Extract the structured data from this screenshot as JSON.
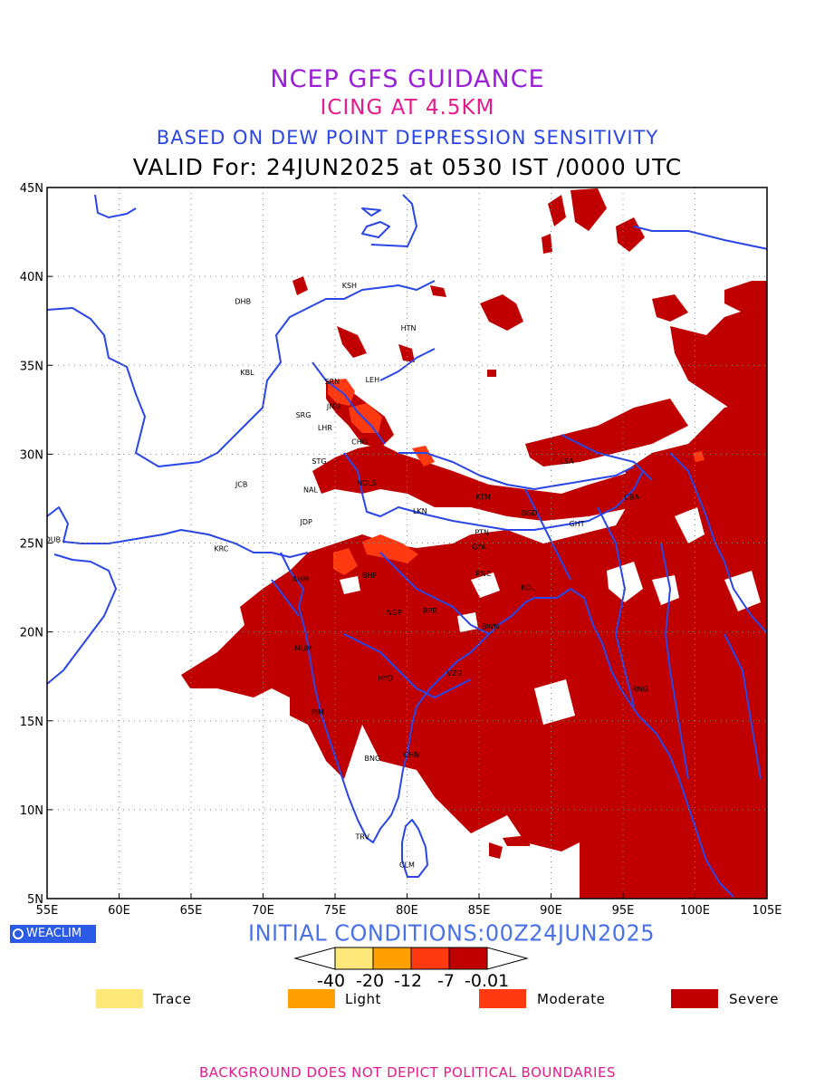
{
  "titles": {
    "line1": "NCEP GFS GUIDANCE",
    "line2": "ICING AT 4.5KM",
    "line3": "BASED ON DEW POINT DEPRESSION SENSITIVITY",
    "line4": "VALID For: 24JUN2025 at 0530 IST /0000 UTC"
  },
  "map": {
    "lon_range": [
      55,
      105
    ],
    "lat_range": [
      5,
      45
    ],
    "x_ticks": [
      "55E",
      "60E",
      "65E",
      "70E",
      "75E",
      "80E",
      "85E",
      "90E",
      "95E",
      "100E",
      "105E"
    ],
    "y_ticks": [
      "45N",
      "40N",
      "35N",
      "30N",
      "25N",
      "20N",
      "15N",
      "10N",
      "5N"
    ],
    "grid": "dotted",
    "coastline_color": "#2a46e6",
    "severe_color": "#c00000",
    "moderate_color": "#ff3a10",
    "cities": [
      {
        "code": "KSH",
        "lon": 76.0,
        "lat": 39.5
      },
      {
        "code": "DHB",
        "lon": 68.6,
        "lat": 38.6
      },
      {
        "code": "HTN",
        "lon": 80.1,
        "lat": 37.1
      },
      {
        "code": "KBL",
        "lon": 68.9,
        "lat": 34.6
      },
      {
        "code": "SRN",
        "lon": 74.8,
        "lat": 34.1
      },
      {
        "code": "LEH",
        "lon": 77.6,
        "lat": 34.2
      },
      {
        "code": "JMU",
        "lon": 74.9,
        "lat": 32.7
      },
      {
        "code": "SRG",
        "lon": 72.8,
        "lat": 32.2
      },
      {
        "code": "LHR",
        "lon": 74.3,
        "lat": 31.5
      },
      {
        "code": "CHG",
        "lon": 76.7,
        "lat": 30.7
      },
      {
        "code": "STG",
        "lon": 73.9,
        "lat": 29.6
      },
      {
        "code": "JCB",
        "lon": 68.5,
        "lat": 28.3
      },
      {
        "code": "NAL",
        "lon": 73.3,
        "lat": 28.0
      },
      {
        "code": "NDLS",
        "lon": 77.2,
        "lat": 28.4
      },
      {
        "code": "KTM",
        "lon": 85.3,
        "lat": 27.6
      },
      {
        "code": "LSA",
        "lon": 91.1,
        "lat": 29.6
      },
      {
        "code": "CBA",
        "lon": 95.6,
        "lat": 27.6
      },
      {
        "code": "JDP",
        "lon": 73.0,
        "lat": 26.2
      },
      {
        "code": "LKN",
        "lon": 80.9,
        "lat": 26.8
      },
      {
        "code": "BGD",
        "lon": 88.5,
        "lat": 26.7
      },
      {
        "code": "GHT",
        "lon": 91.8,
        "lat": 26.1
      },
      {
        "code": "DUB",
        "lon": 55.4,
        "lat": 25.2
      },
      {
        "code": "PTN",
        "lon": 85.2,
        "lat": 25.6
      },
      {
        "code": "KRC",
        "lon": 67.1,
        "lat": 24.7
      },
      {
        "code": "BHP",
        "lon": 77.4,
        "lat": 23.2
      },
      {
        "code": "RNC",
        "lon": 85.3,
        "lat": 23.3
      },
      {
        "code": "AHM",
        "lon": 72.6,
        "lat": 23.0
      },
      {
        "code": "GYA",
        "lon": 85.0,
        "lat": 24.8
      },
      {
        "code": "KOL",
        "lon": 88.4,
        "lat": 22.5
      },
      {
        "code": "NGP",
        "lon": 79.1,
        "lat": 21.1
      },
      {
        "code": "RPR",
        "lon": 81.6,
        "lat": 21.2
      },
      {
        "code": "BWN",
        "lon": 85.8,
        "lat": 20.3
      },
      {
        "code": "MUM",
        "lon": 72.8,
        "lat": 19.1
      },
      {
        "code": "HYD",
        "lon": 78.5,
        "lat": 17.4
      },
      {
        "code": "VZG",
        "lon": 83.3,
        "lat": 17.7
      },
      {
        "code": "RNG",
        "lon": 96.2,
        "lat": 16.8
      },
      {
        "code": "PJM",
        "lon": 73.8,
        "lat": 15.5
      },
      {
        "code": "CHN",
        "lon": 80.3,
        "lat": 13.1
      },
      {
        "code": "BNG",
        "lon": 77.6,
        "lat": 12.9
      },
      {
        "code": "TRV",
        "lon": 76.9,
        "lat": 8.5
      },
      {
        "code": "CLM",
        "lon": 80.0,
        "lat": 6.9
      }
    ]
  },
  "brand": "WEACLIM",
  "initial": "INITIAL CONDITIONS:00Z24JUN2025",
  "colorbar": {
    "colors": [
      "#ffe87a",
      "#ffa000",
      "#ff3a10",
      "#c00000"
    ],
    "ticks": [
      "-40",
      "-20",
      "-12",
      "-7",
      "-0.01"
    ]
  },
  "legend": [
    {
      "label": "Trace",
      "color": "#ffe87a"
    },
    {
      "label": "Light",
      "color": "#ffa000"
    },
    {
      "label": "Moderate",
      "color": "#ff3a10"
    },
    {
      "label": "Severe",
      "color": "#c00000"
    }
  ],
  "footnote": "BACKGROUND DOES NOT DEPICT POLITICAL BOUNDARIES"
}
